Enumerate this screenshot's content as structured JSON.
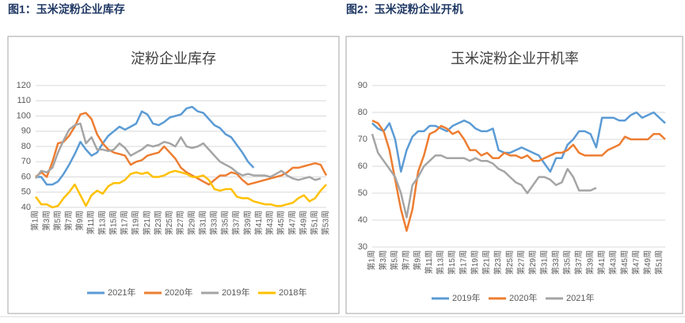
{
  "chart_data": [
    {
      "type": "line",
      "caption": "图1：玉米淀粉企业库存",
      "title": "淀粉企业库存",
      "categories": [
        "第1周",
        null,
        "第3周",
        null,
        "第5周",
        null,
        "第7周",
        null,
        "第9周",
        null,
        "第11周",
        null,
        "第13周",
        null,
        "第15周",
        null,
        "第17周",
        null,
        "第19周",
        null,
        "第21周",
        null,
        "第23周",
        null,
        "第25周",
        null,
        "第27周",
        null,
        "第29周",
        null,
        "第31周",
        null,
        "第33周",
        null,
        "第35周",
        null,
        "第37周",
        null,
        "第39周",
        null,
        "第41周",
        null,
        "第43周",
        null,
        "第45周",
        null,
        "第47周",
        null,
        "第49周",
        null,
        "第51周",
        null,
        "第53周"
      ],
      "ylim": [
        40,
        120
      ],
      "yticks": [
        40,
        50,
        60,
        70,
        80,
        90,
        100,
        110,
        120
      ],
      "grid": true,
      "legend": "bottom",
      "series": [
        {
          "name": "2021年",
          "color": "#5b9bd5",
          "values": [
            60,
            60,
            55,
            55,
            57,
            62,
            68,
            75,
            83,
            78,
            74,
            76,
            82,
            87,
            90,
            93,
            91,
            93,
            95,
            103,
            101,
            95,
            94,
            96,
            99,
            100,
            101,
            105,
            106,
            103,
            102,
            98,
            94,
            92,
            88,
            86,
            81,
            76,
            70,
            66,
            null,
            null,
            null,
            null,
            null,
            null,
            null,
            null,
            null,
            null,
            null,
            null,
            null
          ]
        },
        {
          "name": "2020年",
          "color": "#ed7d31",
          "values": [
            60,
            63,
            60,
            70,
            82,
            83,
            87,
            93,
            101,
            102,
            98,
            88,
            82,
            78,
            76,
            75,
            74,
            68,
            70,
            71,
            74,
            75,
            76,
            80,
            76,
            72,
            66,
            63,
            61,
            59,
            57,
            55,
            58,
            61,
            61,
            63,
            62,
            58,
            55,
            56,
            57,
            58,
            59,
            60,
            61,
            63,
            66,
            66,
            67,
            68,
            69,
            68,
            61
          ]
        },
        {
          "name": "2019年",
          "color": "#a5a5a5",
          "values": [
            59,
            64,
            63,
            66,
            76,
            84,
            91,
            94,
            95,
            82,
            86,
            78,
            78,
            77,
            78,
            82,
            79,
            74,
            76,
            78,
            81,
            80,
            81,
            83,
            82,
            80,
            86,
            80,
            79,
            80,
            82,
            78,
            74,
            70,
            68,
            66,
            63,
            61,
            62,
            61,
            61,
            61,
            60,
            62,
            64,
            61,
            59,
            58,
            59,
            60,
            58,
            59,
            null
          ]
        },
        {
          "name": "2018年",
          "color": "#ffc000",
          "values": [
            47,
            42,
            42,
            40,
            41,
            46,
            50,
            55,
            48,
            41,
            48,
            51,
            49,
            54,
            56,
            56,
            58,
            62,
            63,
            62,
            63,
            60,
            60,
            61,
            63,
            64,
            63,
            62,
            60,
            60,
            61,
            58,
            52,
            51,
            52,
            52,
            47,
            46,
            46,
            44,
            43,
            42,
            42,
            41,
            41,
            42,
            43,
            46,
            48,
            44,
            46,
            51,
            55
          ]
        }
      ]
    },
    {
      "type": "line",
      "caption": "图2：玉米淀粉企业开机",
      "title": "玉米淀粉企业开机率",
      "categories": [
        "第1周",
        null,
        "第3周",
        null,
        "第5周",
        null,
        "第7周",
        null,
        "第9周",
        null,
        "第11周",
        null,
        "第13周",
        null,
        "第15周",
        null,
        "第17周",
        null,
        "第19周",
        null,
        "第21周",
        null,
        "第23周",
        null,
        "第25周",
        null,
        "第27周",
        null,
        "第29周",
        null,
        "第31周",
        null,
        "第33周",
        null,
        "第35周",
        null,
        "第37周",
        null,
        "第39周",
        null,
        "第41周",
        null,
        "第43周",
        null,
        "第45周",
        null,
        "第47周",
        null,
        "第49周",
        null,
        "第51周",
        null
      ],
      "ylim": [
        30,
        90
      ],
      "yticks": [
        30,
        40,
        50,
        60,
        70,
        80,
        90
      ],
      "grid": true,
      "legend": "bottom",
      "series": [
        {
          "name": "2019年",
          "color": "#5b9bd5",
          "values": [
            76,
            74,
            73,
            76,
            70,
            58,
            66,
            71,
            73,
            73,
            75,
            75,
            74,
            73,
            75,
            76,
            77,
            76,
            74,
            73,
            73,
            74,
            66,
            65,
            65,
            66,
            67,
            66,
            65,
            64,
            61,
            58,
            63,
            63,
            68,
            70,
            73,
            73,
            72,
            67,
            78,
            78,
            78,
            77,
            77,
            79,
            80,
            78,
            79,
            80,
            78,
            76
          ]
        },
        {
          "name": "2020年",
          "color": "#ed7d31",
          "values": [
            77,
            76,
            73,
            66,
            55,
            44,
            36,
            44,
            58,
            64,
            72,
            73,
            75,
            74,
            72,
            73,
            70,
            66,
            66,
            64,
            65,
            63,
            63,
            65,
            64,
            64,
            63,
            64,
            62,
            62,
            63,
            64,
            65,
            65,
            66,
            68,
            65,
            64,
            64,
            64,
            64,
            66,
            67,
            68,
            71,
            70,
            70,
            70,
            70,
            72,
            72,
            70
          ]
        },
        {
          "name": "2021年",
          "color": "#a5a5a5",
          "values": [
            72,
            65,
            62,
            59,
            56,
            50,
            41,
            53,
            56,
            60,
            62,
            64,
            64,
            63,
            63,
            63,
            63,
            62,
            63,
            62,
            62,
            61,
            59,
            58,
            56,
            54,
            53,
            50,
            53,
            56,
            56,
            55,
            53,
            54,
            59,
            56,
            51,
            51,
            51,
            52,
            null,
            null,
            null,
            null,
            null,
            null,
            null,
            null,
            null,
            null,
            null,
            null
          ]
        }
      ]
    }
  ]
}
